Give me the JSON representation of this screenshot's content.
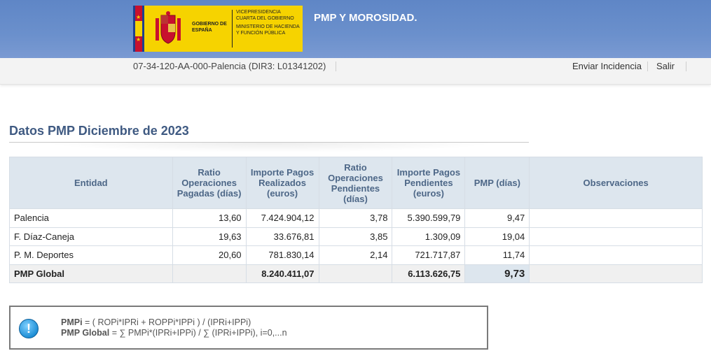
{
  "header": {
    "logo": {
      "gobierno": "GOBIERNO DE ESPAÑA",
      "vicepresidencia": "VICEPRESIDENCIA CUARTA DEL GOBIERNO",
      "ministerio": "MINISTERIO DE HACIENDA Y FUNCIÓN PÚBLICA",
      "colors": {
        "bg": "#f6d300",
        "red": "#c8102e",
        "blue": "#1e3f8f"
      }
    },
    "app_title": "PMP Y MOROSIDAD.",
    "banner_color": "#6b90cc"
  },
  "subbar": {
    "entity": "07-34-120-AA-000-Palencia (DIR3: L01341202)",
    "links": {
      "incidencia": "Enviar Incidencia",
      "salir": "Salir"
    }
  },
  "section": {
    "title": "Datos PMP Diciembre de 2023"
  },
  "table": {
    "headers": {
      "entidad": "Entidad",
      "ratio_pagadas": "Ratio Operaciones Pagadas (días)",
      "importe_realizados": "Importe Pagos Realizados (euros)",
      "ratio_pendientes": "Ratio Operaciones Pendientes (días)",
      "importe_pendientes": "Importe Pagos Pendientes (euros)",
      "pmp": "PMP (días)",
      "observaciones": "Observaciones"
    },
    "rows": [
      {
        "entidad": "Palencia",
        "ratio_pagadas": "13,60",
        "importe_realizados": "7.424.904,12",
        "ratio_pendientes": "3,78",
        "importe_pendientes": "5.390.599,79",
        "pmp": "9,47",
        "observaciones": ""
      },
      {
        "entidad": "F. Díaz-Caneja",
        "ratio_pagadas": "19,63",
        "importe_realizados": "33.676,81",
        "ratio_pendientes": "3,85",
        "importe_pendientes": "1.309,09",
        "pmp": "19,04",
        "observaciones": ""
      },
      {
        "entidad": "P. M. Deportes",
        "ratio_pagadas": "20,60",
        "importe_realizados": "781.830,14",
        "ratio_pendientes": "2,14",
        "importe_pendientes": "721.717,87",
        "pmp": "11,74",
        "observaciones": ""
      }
    ],
    "global": {
      "label": "PMP Global",
      "importe_realizados": "8.240.411,07",
      "importe_pendientes": "6.113.626,75",
      "pmp": "9,73"
    }
  },
  "formula": {
    "icon": "info-icon",
    "line1_label": "PMPi",
    "line1_text": " = ( ROPi*IPRi + ROPPi*IPPi ) / (IPRi+IPPi)",
    "line2_label": "PMP Global",
    "line2_text": " = ∑ PMPi*(IPRi+IPPi) / ∑ (IPRi+IPPi), i=0,...n"
  }
}
